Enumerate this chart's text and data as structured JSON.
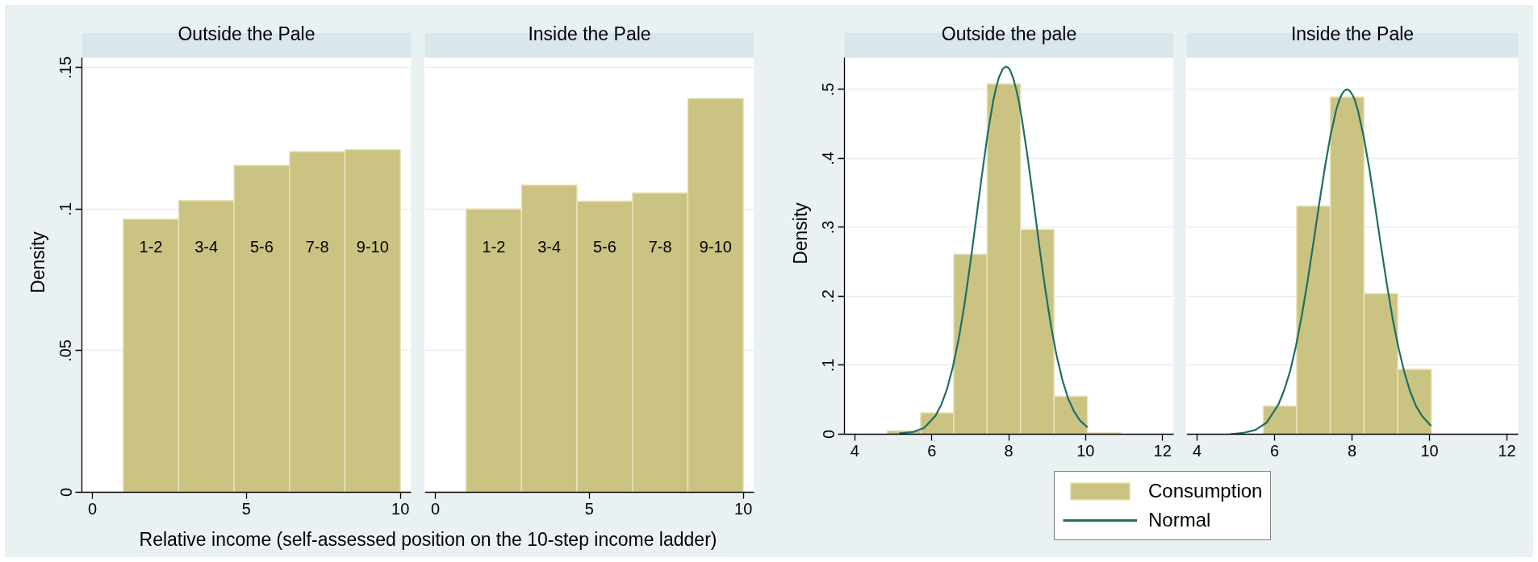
{
  "chart_data": [
    {
      "type": "histogram",
      "title": "Outside the Pale",
      "ylabel": "Density",
      "xlabel": "Relative income (self-assessed position on the 10-step income ladder)",
      "bins": [
        1,
        2.8,
        4.6,
        6.4,
        8.2,
        10
      ],
      "values": [
        0.0965,
        0.103,
        0.1155,
        0.1203,
        0.121
      ],
      "value_labels": [
        "1-2",
        "3-4",
        "5-6",
        "7-8",
        "9-10"
      ],
      "color": "#cbc382",
      "xlim": [
        -0.34,
        10.35
      ],
      "xticks": [
        0,
        5,
        10
      ],
      "ylim": [
        0,
        0.1535
      ],
      "yticks": [
        0,
        {
          "value": 0.05,
          "label": ".05"
        },
        {
          "value": 0.1,
          "label": ".1"
        },
        {
          "value": 0.15,
          "label": ".15"
        }
      ],
      "grid": "y"
    },
    {
      "type": "histogram",
      "title": "Inside the Pale",
      "bins": [
        1,
        2.8,
        4.6,
        6.4,
        8.2,
        10
      ],
      "values": [
        0.1,
        0.1085,
        0.1028,
        0.1057,
        0.1391
      ],
      "value_labels": [
        "1-2",
        "3-4",
        "5-6",
        "7-8",
        "9-10"
      ],
      "color": "#cbc382",
      "xlim": [
        -0.34,
        10.35
      ],
      "xticks": [
        0,
        5,
        10
      ],
      "ylim": [
        0,
        0.1535
      ],
      "yticks": [
        {
          "value": 0,
          "label": null
        },
        {
          "value": 0.05,
          "label": null
        },
        {
          "value": 0.1,
          "label": null
        },
        {
          "value": 0.15,
          "label": null
        }
      ],
      "grid": "y",
      "tick_labels": "x"
    },
    {
      "type": "histogram",
      "title": "Outside the pale",
      "ylabel": "Density",
      "xlim": [
        3.73,
        12.29
      ],
      "xticks": [
        4,
        6,
        8,
        10,
        12
      ],
      "ylim": [
        0,
        0.546
      ],
      "yticks": [
        0,
        {
          "value": 0.1,
          "label": ".1"
        },
        {
          "value": 0.2,
          "label": ".2"
        },
        {
          "value": 0.3,
          "label": ".3"
        },
        {
          "value": 0.4,
          "label": ".4"
        },
        {
          "value": 0.5,
          "label": ".5"
        }
      ],
      "grid": "y",
      "legend": "bottom",
      "series": [
        {
          "name": "Consumption",
          "type": "histogram",
          "color": "#cbc382",
          "bins": [
            4.84,
            5.71,
            6.57,
            7.44,
            8.31,
            9.18,
            10.05,
            10.91
          ],
          "values": [
            0.005,
            0.031,
            0.261,
            0.508,
            0.297,
            0.055,
            0.002
          ]
        },
        {
          "name": "Normal",
          "type": "line",
          "color": "#1f6e66",
          "x": [
            5.15,
            5.5,
            5.8,
            6.1,
            6.25,
            6.4,
            6.55,
            6.7,
            6.85,
            7.0,
            7.15,
            7.3,
            7.45,
            7.6,
            7.68,
            7.75,
            7.85,
            7.93,
            8.0,
            8.05,
            8.12,
            8.2,
            8.27,
            8.35,
            8.5,
            8.65,
            8.8,
            8.95,
            9.1,
            9.25,
            9.4,
            9.55,
            9.7,
            9.85,
            10.05
          ],
          "values": [
            0.001,
            0.003,
            0.009,
            0.027,
            0.043,
            0.066,
            0.098,
            0.138,
            0.188,
            0.247,
            0.31,
            0.374,
            0.434,
            0.484,
            0.504,
            0.518,
            0.53,
            0.533,
            0.531,
            0.526,
            0.516,
            0.499,
            0.481,
            0.455,
            0.399,
            0.336,
            0.271,
            0.211,
            0.157,
            0.113,
            0.078,
            0.051,
            0.033,
            0.02,
            0.01
          ]
        }
      ]
    },
    {
      "type": "histogram",
      "title": "Inside the Pale",
      "xlim": [
        3.73,
        12.29
      ],
      "xticks": [
        4,
        6,
        8,
        10,
        12
      ],
      "ylim": [
        0,
        0.546
      ],
      "yticks": [
        {
          "value": 0,
          "label": null
        },
        {
          "value": 0.1,
          "label": null
        },
        {
          "value": 0.2,
          "label": null
        },
        {
          "value": 0.3,
          "label": null
        },
        {
          "value": 0.4,
          "label": null
        },
        {
          "value": 0.5,
          "label": null
        }
      ],
      "grid": "y",
      "tick_labels": "x",
      "series": [
        {
          "type": "histogram",
          "color": "#cbc382",
          "bins": [
            5.71,
            6.57,
            7.44,
            8.31,
            9.18,
            10.05
          ],
          "values": [
            0.041,
            0.331,
            0.489,
            0.204,
            0.094
          ]
        },
        {
          "type": "line",
          "color": "#1f6e66",
          "x": [
            4.86,
            5.2,
            5.5,
            5.8,
            6.1,
            6.25,
            6.4,
            6.55,
            6.7,
            6.85,
            7.0,
            7.15,
            7.3,
            7.45,
            7.6,
            7.68,
            7.75,
            7.8,
            7.87,
            7.94,
            8.0,
            8.07,
            8.15,
            8.3,
            8.45,
            8.6,
            8.75,
            8.9,
            9.05,
            9.2,
            9.35,
            9.5,
            9.65,
            9.8,
            10.04
          ],
          "values": [
            0.0,
            0.002,
            0.006,
            0.017,
            0.043,
            0.064,
            0.091,
            0.127,
            0.171,
            0.221,
            0.276,
            0.333,
            0.387,
            0.435,
            0.472,
            0.486,
            0.494,
            0.498,
            0.5,
            0.498,
            0.493,
            0.485,
            0.47,
            0.432,
            0.384,
            0.329,
            0.272,
            0.217,
            0.167,
            0.125,
            0.09,
            0.062,
            0.041,
            0.027,
            0.012
          ]
        }
      ]
    }
  ]
}
